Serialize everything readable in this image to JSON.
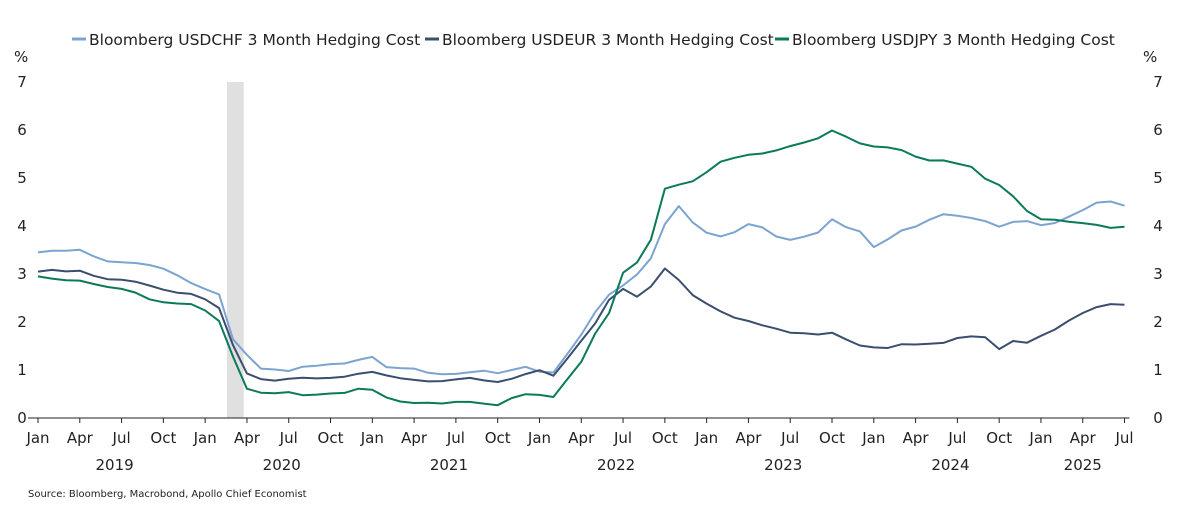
{
  "chart_data": {
    "type": "line",
    "title": "",
    "source": "Source: Bloomberg, Macrobond, Apollo Chief Economist",
    "ylabel_left": "%",
    "ylabel_right": "%",
    "ylim": [
      0,
      7
    ],
    "yticks": [
      0,
      1,
      2,
      3,
      4,
      5,
      6,
      7
    ],
    "x_start": "2019-01",
    "x_frequency": "monthly",
    "xtick_month_labels": [
      "Jan",
      "Apr",
      "Jul",
      "Oct"
    ],
    "years": [
      "2019",
      "2020",
      "2021",
      "2022",
      "2023",
      "2024",
      "2025"
    ],
    "shaded_period": {
      "label": "recession",
      "start_month_index": 1.6,
      "end_month_index": 2.8
    },
    "legend_position": "top",
    "series": [
      {
        "name": "Bloomberg USDCHF 3 Month Hedging Cost",
        "color": "#7ba4d0",
        "values": [
          3.45,
          3.45,
          3.45,
          3.5,
          3.4,
          3.3,
          3.25,
          3.2,
          3.15,
          3.1,
          3.0,
          2.85,
          2.7,
          2.55,
          1.6,
          1.3,
          1.05,
          1.05,
          1.0,
          1.05,
          1.05,
          1.1,
          1.15,
          1.25,
          1.3,
          1.05,
          1.0,
          1.0,
          0.95,
          0.95,
          0.95,
          0.95,
          0.95,
          0.9,
          1.0,
          1.1,
          1.0,
          0.95,
          1.3,
          1.7,
          2.2,
          2.6,
          2.8,
          3.0,
          3.3,
          4.0,
          4.4,
          4.1,
          3.9,
          3.8,
          3.85,
          4.0,
          3.95,
          3.8,
          3.75,
          3.8,
          3.85,
          4.1,
          3.95,
          3.9,
          3.6,
          3.75,
          3.9,
          3.95,
          4.1,
          4.25,
          4.25,
          4.2,
          4.1,
          3.95,
          4.05,
          4.1,
          4.05,
          4.1,
          4.2,
          4.3,
          4.45,
          4.5,
          4.45
        ]
      },
      {
        "name": "Bloomberg USDEUR 3 Month Hedging Cost",
        "color": "#3b4e6e",
        "values": [
          3.05,
          3.05,
          3.05,
          3.1,
          3.0,
          2.9,
          2.85,
          2.8,
          2.75,
          2.7,
          2.65,
          2.6,
          2.45,
          2.25,
          1.5,
          0.95,
          0.85,
          0.8,
          0.8,
          0.8,
          0.8,
          0.85,
          0.9,
          0.95,
          0.95,
          0.85,
          0.8,
          0.8,
          0.8,
          0.8,
          0.8,
          0.8,
          0.75,
          0.75,
          0.85,
          0.95,
          1.0,
          0.85,
          1.2,
          1.6,
          2.0,
          2.5,
          2.7,
          2.5,
          2.7,
          3.1,
          2.9,
          2.6,
          2.4,
          2.2,
          2.05,
          2.0,
          1.95,
          1.9,
          1.8,
          1.75,
          1.7,
          1.75,
          1.65,
          1.55,
          1.5,
          1.45,
          1.5,
          1.5,
          1.55,
          1.6,
          1.7,
          1.7,
          1.65,
          1.4,
          1.6,
          1.6,
          1.75,
          1.85,
          2.0,
          2.15,
          2.3,
          2.4,
          2.4
        ]
      },
      {
        "name": "Bloomberg USDJPY 3 Month Hedging Cost",
        "color": "#0a7a58",
        "values": [
          2.95,
          2.9,
          2.9,
          2.9,
          2.8,
          2.7,
          2.65,
          2.6,
          2.5,
          2.45,
          2.4,
          2.35,
          2.2,
          2.0,
          1.3,
          0.65,
          0.55,
          0.5,
          0.5,
          0.45,
          0.5,
          0.55,
          0.55,
          0.6,
          0.55,
          0.4,
          0.35,
          0.35,
          0.35,
          0.3,
          0.3,
          0.3,
          0.3,
          0.3,
          0.45,
          0.5,
          0.45,
          0.4,
          0.8,
          1.2,
          1.8,
          2.2,
          3.0,
          3.2,
          3.7,
          4.8,
          4.9,
          4.95,
          5.1,
          5.3,
          5.4,
          5.5,
          5.55,
          5.6,
          5.65,
          5.7,
          5.8,
          6.0,
          5.9,
          5.75,
          5.65,
          5.6,
          5.55,
          5.45,
          5.4,
          5.4,
          5.3,
          5.2,
          4.95,
          4.85,
          4.65,
          4.35,
          4.15,
          4.1,
          4.05,
          4.05,
          4.05,
          4.0,
          4.0
        ]
      }
    ]
  }
}
